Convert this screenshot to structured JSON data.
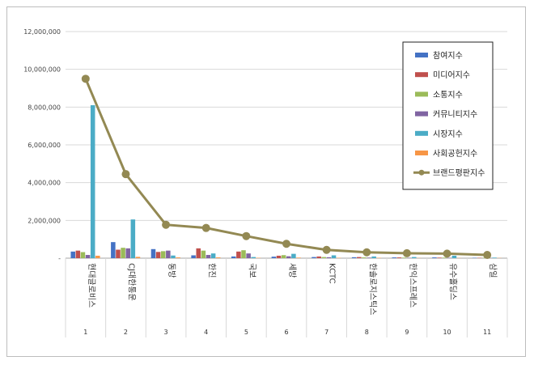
{
  "chart_data": {
    "type": "bar",
    "title": "",
    "xlabel": "",
    "ylabel": "",
    "ylim": [
      0,
      12000000
    ],
    "yticks": [
      "12,000,000",
      "10,000,000",
      "8,000,000",
      "6,000,000",
      "4,000,000",
      "2,000,000",
      "-"
    ],
    "ytick_values": [
      12000000,
      10000000,
      8000000,
      6000000,
      4000000,
      2000000,
      0
    ],
    "grid": true,
    "legend_position": "top-right",
    "categories": [
      "현대글로비스",
      "CJ대한통운",
      "동방",
      "한진",
      "국보",
      "세방",
      "KCTC",
      "한솔로지스틱스",
      "한익스프레스",
      "유수홀딩스",
      "삼일"
    ],
    "category_index": [
      "1",
      "2",
      "3",
      "4",
      "5",
      "6",
      "7",
      "8",
      "9",
      "10",
      "11"
    ],
    "series": [
      {
        "name": "참여지수",
        "type": "bar",
        "color": "#4472c4",
        "values": [
          350000,
          850000,
          480000,
          150000,
          90000,
          80000,
          60000,
          50000,
          40000,
          40000,
          20000
        ]
      },
      {
        "name": "미디어지수",
        "type": "bar",
        "color": "#c0504d",
        "values": [
          400000,
          450000,
          330000,
          520000,
          350000,
          130000,
          90000,
          60000,
          40000,
          30000,
          20000
        ]
      },
      {
        "name": "소통지수",
        "type": "bar",
        "color": "#9bbb59",
        "values": [
          320000,
          550000,
          370000,
          400000,
          420000,
          160000,
          60000,
          40000,
          30000,
          30000,
          20000
        ]
      },
      {
        "name": "커뮤니티지수",
        "type": "bar",
        "color": "#8064a2",
        "values": [
          170000,
          520000,
          400000,
          170000,
          250000,
          100000,
          50000,
          30000,
          20000,
          20000,
          10000
        ]
      },
      {
        "name": "시장지수",
        "type": "bar",
        "color": "#4bacc6",
        "values": [
          8100000,
          2050000,
          140000,
          250000,
          60000,
          230000,
          150000,
          90000,
          60000,
          130000,
          30000
        ]
      },
      {
        "name": "사회공헌지수",
        "type": "bar",
        "color": "#f79646",
        "values": [
          130000,
          70000,
          40000,
          40000,
          20000,
          30000,
          20000,
          20000,
          10000,
          10000,
          10000
        ]
      },
      {
        "name": "브랜드평판지수",
        "type": "line",
        "color": "#938953",
        "values": [
          9500000,
          4450000,
          1770000,
          1600000,
          1170000,
          760000,
          440000,
          310000,
          260000,
          240000,
          170000
        ]
      }
    ]
  }
}
